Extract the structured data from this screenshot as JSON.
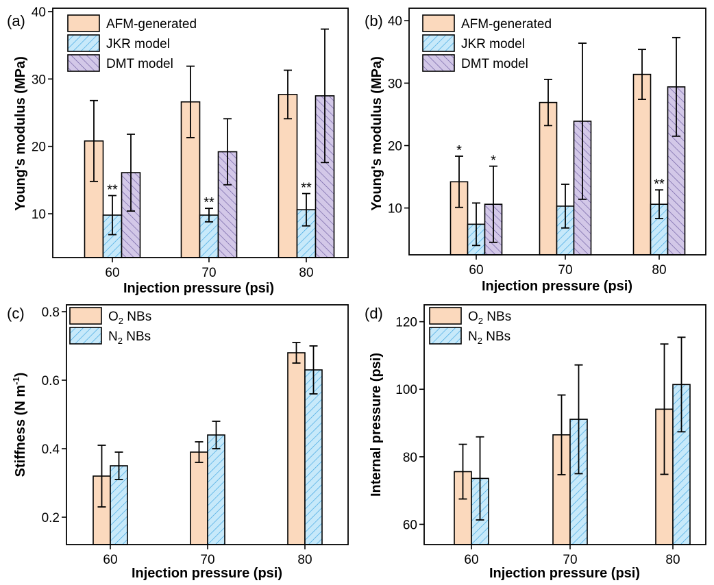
{
  "colors": {
    "afm_fill": "#fbd9bd",
    "jkr_fill": "#c7e9fa",
    "jkr_hatch": "#3aa3e0",
    "dmt_fill": "#d3c8e8",
    "dmt_hatch": "#6a5aa0",
    "o2_fill": "#fbd9bd",
    "n2_fill": "#c7e9fa",
    "n2_hatch": "#3aa3e0"
  },
  "chart_data": [
    {
      "panel": "(a)",
      "type": "bar",
      "xlabel": "Injection pressure (psi)",
      "ylabel": "Young's modulus (MPa)",
      "ylim": [
        3.5,
        40.5
      ],
      "yticks": [
        10,
        20,
        30,
        40
      ],
      "categories": [
        "60",
        "70",
        "80"
      ],
      "legend_position": "top-left",
      "series": [
        {
          "name": "AFM-generated",
          "style": "afm",
          "values": [
            20.8,
            26.6,
            27.7
          ],
          "errors": [
            6.0,
            5.3,
            3.6
          ]
        },
        {
          "name": "JKR model",
          "style": "jkr",
          "values": [
            9.8,
            9.8,
            10.6
          ],
          "errors": [
            2.9,
            1.0,
            2.4
          ]
        },
        {
          "name": "DMT model",
          "style": "dmt",
          "values": [
            16.1,
            19.2,
            27.5
          ],
          "errors": [
            5.7,
            4.9,
            9.9
          ]
        }
      ],
      "annotations": [
        {
          "text": "**",
          "category": 0,
          "series": 1
        },
        {
          "text": "**",
          "category": 1,
          "series": 1
        },
        {
          "text": "**",
          "category": 2,
          "series": 1
        }
      ]
    },
    {
      "panel": "(b)",
      "type": "bar",
      "xlabel": "Injection pressure (psi)",
      "ylabel": "Young's modulus (MPa)",
      "ylim": [
        2.5,
        42
      ],
      "yticks": [
        10,
        20,
        30,
        40
      ],
      "categories": [
        "60",
        "70",
        "80"
      ],
      "legend_position": "top-left",
      "series": [
        {
          "name": "AFM-generated",
          "style": "afm",
          "values": [
            14.2,
            26.9,
            31.4
          ],
          "errors": [
            4.1,
            3.7,
            4.0
          ]
        },
        {
          "name": "JKR model",
          "style": "jkr",
          "values": [
            7.4,
            10.3,
            10.6
          ],
          "errors": [
            3.4,
            3.5,
            2.3
          ]
        },
        {
          "name": "DMT model",
          "style": "dmt",
          "values": [
            10.6,
            23.9,
            29.4
          ],
          "errors": [
            6.1,
            12.5,
            7.9
          ]
        }
      ],
      "annotations": [
        {
          "text": "*",
          "category": 0,
          "series": 0
        },
        {
          "text": "*",
          "category": 0,
          "series": 2
        },
        {
          "text": "**",
          "category": 2,
          "series": 1
        }
      ]
    },
    {
      "panel": "(c)",
      "type": "bar",
      "xlabel": "Injection pressure (psi)",
      "ylabel": "Stiffness (N m",
      "ylabel_superscript": "-1",
      "ylabel_suffix": ")",
      "ylim": [
        0.12,
        0.82
      ],
      "yticks": [
        0.2,
        0.4,
        0.6,
        0.8
      ],
      "categories": [
        "60",
        "70",
        "80"
      ],
      "legend_position": "top-left",
      "series": [
        {
          "name": "O",
          "name_sub": "2",
          "name_suffix": " NBs",
          "style": "o2",
          "values": [
            0.32,
            0.39,
            0.68
          ],
          "errors": [
            0.09,
            0.03,
            0.03
          ]
        },
        {
          "name": "N",
          "name_sub": "2",
          "name_suffix": " NBs",
          "style": "n2",
          "values": [
            0.35,
            0.44,
            0.63
          ],
          "errors": [
            0.04,
            0.04,
            0.07
          ]
        }
      ],
      "annotations": []
    },
    {
      "panel": "(d)",
      "type": "bar",
      "xlabel": "Injection pressure (psi)",
      "ylabel": "Internal pressure (psi)",
      "ylim": [
        54,
        125
      ],
      "yticks": [
        60,
        80,
        100,
        120
      ],
      "categories": [
        "60",
        "70",
        "80"
      ],
      "legend_position": "top-left",
      "series": [
        {
          "name": "O",
          "name_sub": "2",
          "name_suffix": " NBs",
          "style": "o2",
          "values": [
            75.6,
            86.5,
            94.1
          ],
          "errors": [
            8.1,
            11.8,
            19.3
          ]
        },
        {
          "name": "N",
          "name_sub": "2",
          "name_suffix": " NBs",
          "style": "n2",
          "values": [
            73.6,
            91.1,
            101.4
          ],
          "errors": [
            12.3,
            16.1,
            14.0
          ]
        }
      ],
      "annotations": []
    }
  ]
}
